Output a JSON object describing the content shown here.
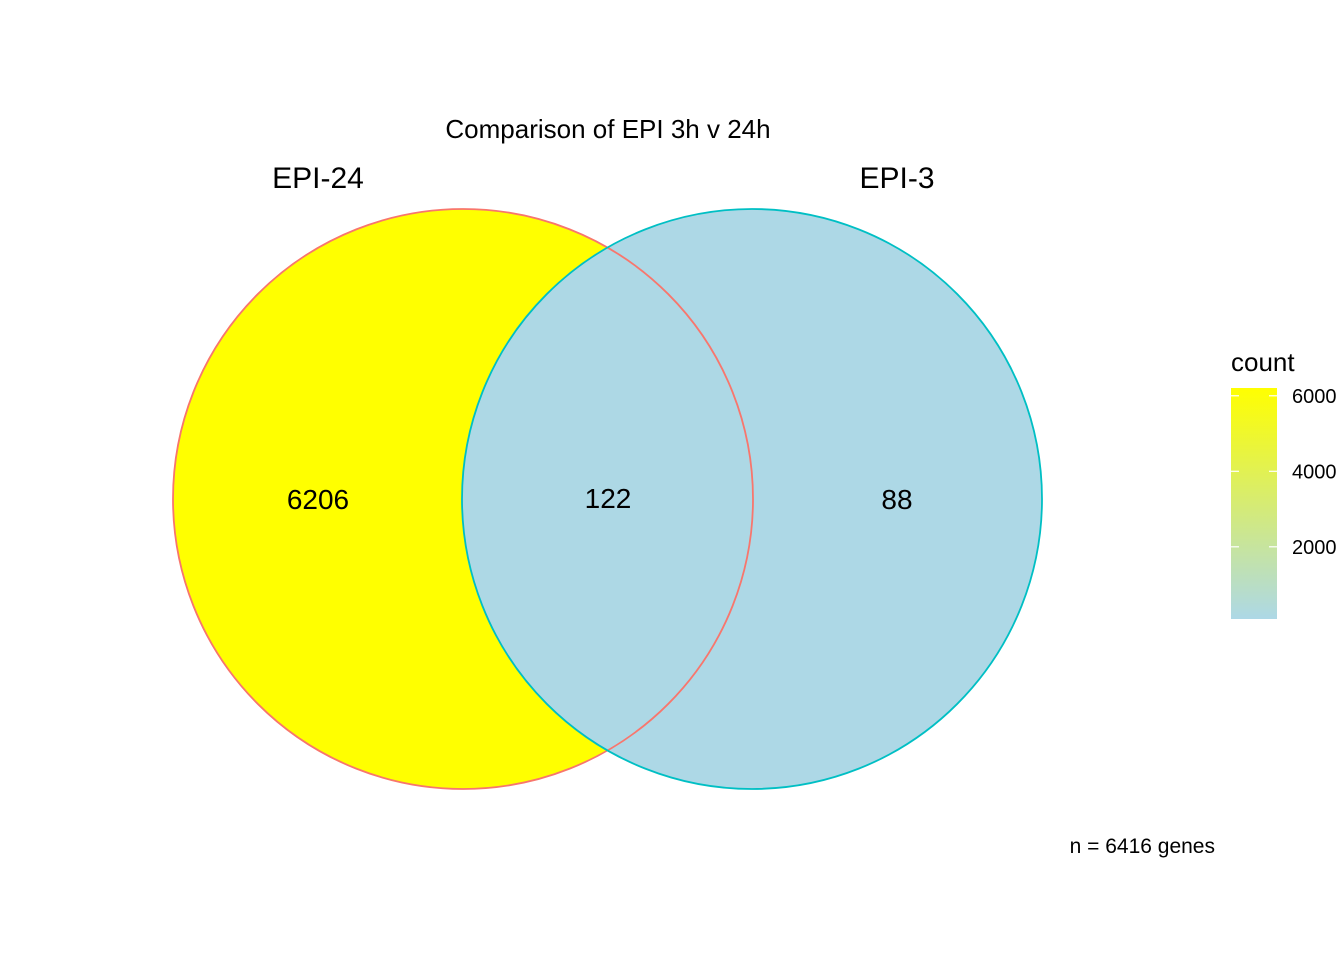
{
  "chart_data": {
    "type": "venn",
    "title": "Comparison of EPI 3h v 24h",
    "sets": [
      {
        "name": "EPI-24",
        "outline_color": "#F8766D"
      },
      {
        "name": "EPI-3",
        "outline_color": "#00BFC4"
      }
    ],
    "regions": [
      {
        "sets": [
          "EPI-24"
        ],
        "label": "6206",
        "count": 6206
      },
      {
        "sets": [
          "EPI-24",
          "EPI-3"
        ],
        "label": "122",
        "count": 122
      },
      {
        "sets": [
          "EPI-3"
        ],
        "label": "88",
        "count": 88
      }
    ],
    "legend": {
      "title": "count",
      "position": "right",
      "gradient_low": "#ADD8E6",
      "gradient_high": "#FFFF00",
      "range": [
        88,
        6206
      ],
      "ticks": [
        {
          "value": 2000,
          "label": "2000"
        },
        {
          "value": 4000,
          "label": "4000"
        },
        {
          "value": 6000,
          "label": "6000"
        }
      ]
    },
    "caption": "n = 6416 genes"
  }
}
